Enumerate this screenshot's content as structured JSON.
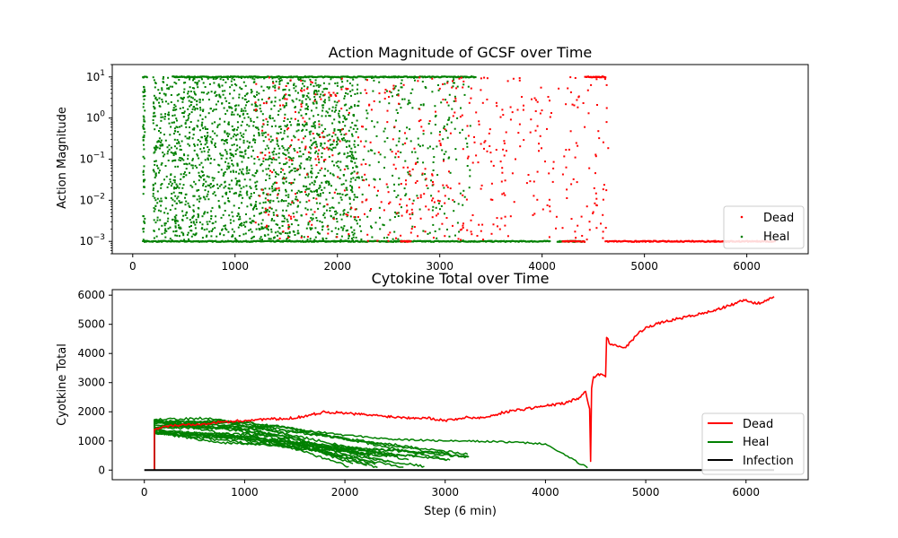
{
  "chart_data": [
    {
      "type": "scatter",
      "title": "Action Magnitude of GCSF over Time",
      "xlabel": "",
      "ylabel": "Action Magnitude",
      "xscale": "linear",
      "yscale": "log",
      "xlim": [
        -200,
        6600
      ],
      "ylim": [
        0.0005,
        20
      ],
      "xticks": [
        0,
        1000,
        2000,
        3000,
        4000,
        5000,
        6000
      ],
      "xtick_labels": [
        "0",
        "1000",
        "2000",
        "3000",
        "4000",
        "5000",
        "6000"
      ],
      "yticks": [
        0.001,
        0.01,
        0.1,
        1,
        10
      ],
      "ytick_labels": [
        {
          "base": "10",
          "exp": "−3"
        },
        {
          "base": "10",
          "exp": "−2"
        },
        {
          "base": "10",
          "exp": "−1"
        },
        {
          "base": "10",
          "exp": "0"
        },
        {
          "base": "10",
          "exp": "1"
        }
      ],
      "legend": {
        "position": "lower-right",
        "entries": [
          "Dead",
          "Heal"
        ]
      },
      "series": [
        {
          "name": "Dead",
          "color": "#ff0000",
          "x_range": [
            1800,
            6280
          ],
          "floor": {
            "y": 0.001,
            "x_segments": [
              [
                2620,
                2720
              ],
              [
                4200,
                4420
              ],
              [
                4620,
                6280
              ]
            ]
          },
          "cap": {
            "y": 10,
            "x_segments": [
              [
                4420,
                4620
              ]
            ]
          },
          "scatter_range": [
            1800,
            4620
          ]
        },
        {
          "name": "Heal",
          "color": "#008000",
          "x_range": [
            100,
            4420
          ],
          "floor": {
            "y": 0.001,
            "x_segments": [
              [
                100,
                4080
              ],
              [
                4150,
                4420
              ]
            ]
          },
          "cap": {
            "y": 10,
            "x_segments": [
              [
                100,
                140
              ],
              [
                390,
                3350
              ]
            ]
          },
          "vertical_bands": [
            {
              "x": 110,
              "y_range": [
                0.001,
                10
              ]
            }
          ],
          "scatter_range": [
            100,
            3300
          ]
        }
      ]
    },
    {
      "type": "line",
      "title": "Cytokine Total over Time",
      "xlabel": "Step (6 min)",
      "ylabel": "Cyotkine Total",
      "xlim": [
        -320,
        6620
      ],
      "ylim": [
        -330,
        6190
      ],
      "xticks": [
        0,
        1000,
        2000,
        3000,
        4000,
        5000,
        6000
      ],
      "xtick_labels": [
        "0",
        "1000",
        "2000",
        "3000",
        "4000",
        "5000",
        "6000"
      ],
      "yticks": [
        0,
        1000,
        2000,
        3000,
        4000,
        5000,
        6000
      ],
      "ytick_labels": [
        "0",
        "1000",
        "2000",
        "3000",
        "4000",
        "5000",
        "6000"
      ],
      "legend": {
        "position": "lower-right",
        "entries": [
          "Dead",
          "Heal",
          "Infection"
        ]
      },
      "series": [
        {
          "name": "Dead",
          "color": "#ff0000",
          "points": [
            [
              100,
              1400
            ],
            [
              200,
              1500
            ],
            [
              400,
              1550
            ],
            [
              600,
              1600
            ],
            [
              800,
              1650
            ],
            [
              1000,
              1700
            ],
            [
              1200,
              1750
            ],
            [
              1400,
              1750
            ],
            [
              1600,
              1850
            ],
            [
              1800,
              2000
            ],
            [
              2000,
              1950
            ],
            [
              2200,
              1900
            ],
            [
              2400,
              1850
            ],
            [
              2600,
              1800
            ],
            [
              2800,
              1800
            ],
            [
              3000,
              1700
            ],
            [
              3200,
              1800
            ],
            [
              3400,
              1800
            ],
            [
              3600,
              2000
            ],
            [
              3800,
              2100
            ],
            [
              4000,
              2200
            ],
            [
              4200,
              2300
            ],
            [
              4350,
              2500
            ],
            [
              4400,
              2700
            ],
            [
              4440,
              2100
            ],
            [
              4450,
              300
            ],
            [
              4460,
              2800
            ],
            [
              4480,
              3200
            ],
            [
              4550,
              3300
            ],
            [
              4600,
              3200
            ],
            [
              4610,
              4550
            ],
            [
              4650,
              4300
            ],
            [
              4700,
              4300
            ],
            [
              4800,
              4200
            ],
            [
              4900,
              4600
            ],
            [
              5000,
              4900
            ],
            [
              5200,
              5100
            ],
            [
              5400,
              5250
            ],
            [
              5600,
              5400
            ],
            [
              5800,
              5600
            ],
            [
              6000,
              5850
            ],
            [
              6100,
              5700
            ],
            [
              6200,
              5800
            ],
            [
              6280,
              5950
            ]
          ]
        },
        {
          "name": "Heal",
          "color": "#008000",
          "line_count": 20,
          "start_x": 100,
          "start_y": [
            1200,
            1750
          ],
          "end_x_range": [
            2000,
            4420
          ],
          "end_y_range": [
            80,
            1000
          ],
          "longest": [
            [
              100,
              1550
            ],
            [
              500,
              1600
            ],
            [
              1000,
              1650
            ],
            [
              1500,
              1400
            ],
            [
              2000,
              1200
            ],
            [
              2500,
              1050
            ],
            [
              3000,
              1000
            ],
            [
              3500,
              980
            ],
            [
              4000,
              900
            ],
            [
              4200,
              500
            ],
            [
              4420,
              80
            ]
          ]
        },
        {
          "name": "Infection",
          "color": "#000000",
          "points": [
            [
              0,
              0
            ],
            [
              6280,
              0
            ]
          ]
        }
      ]
    }
  ]
}
